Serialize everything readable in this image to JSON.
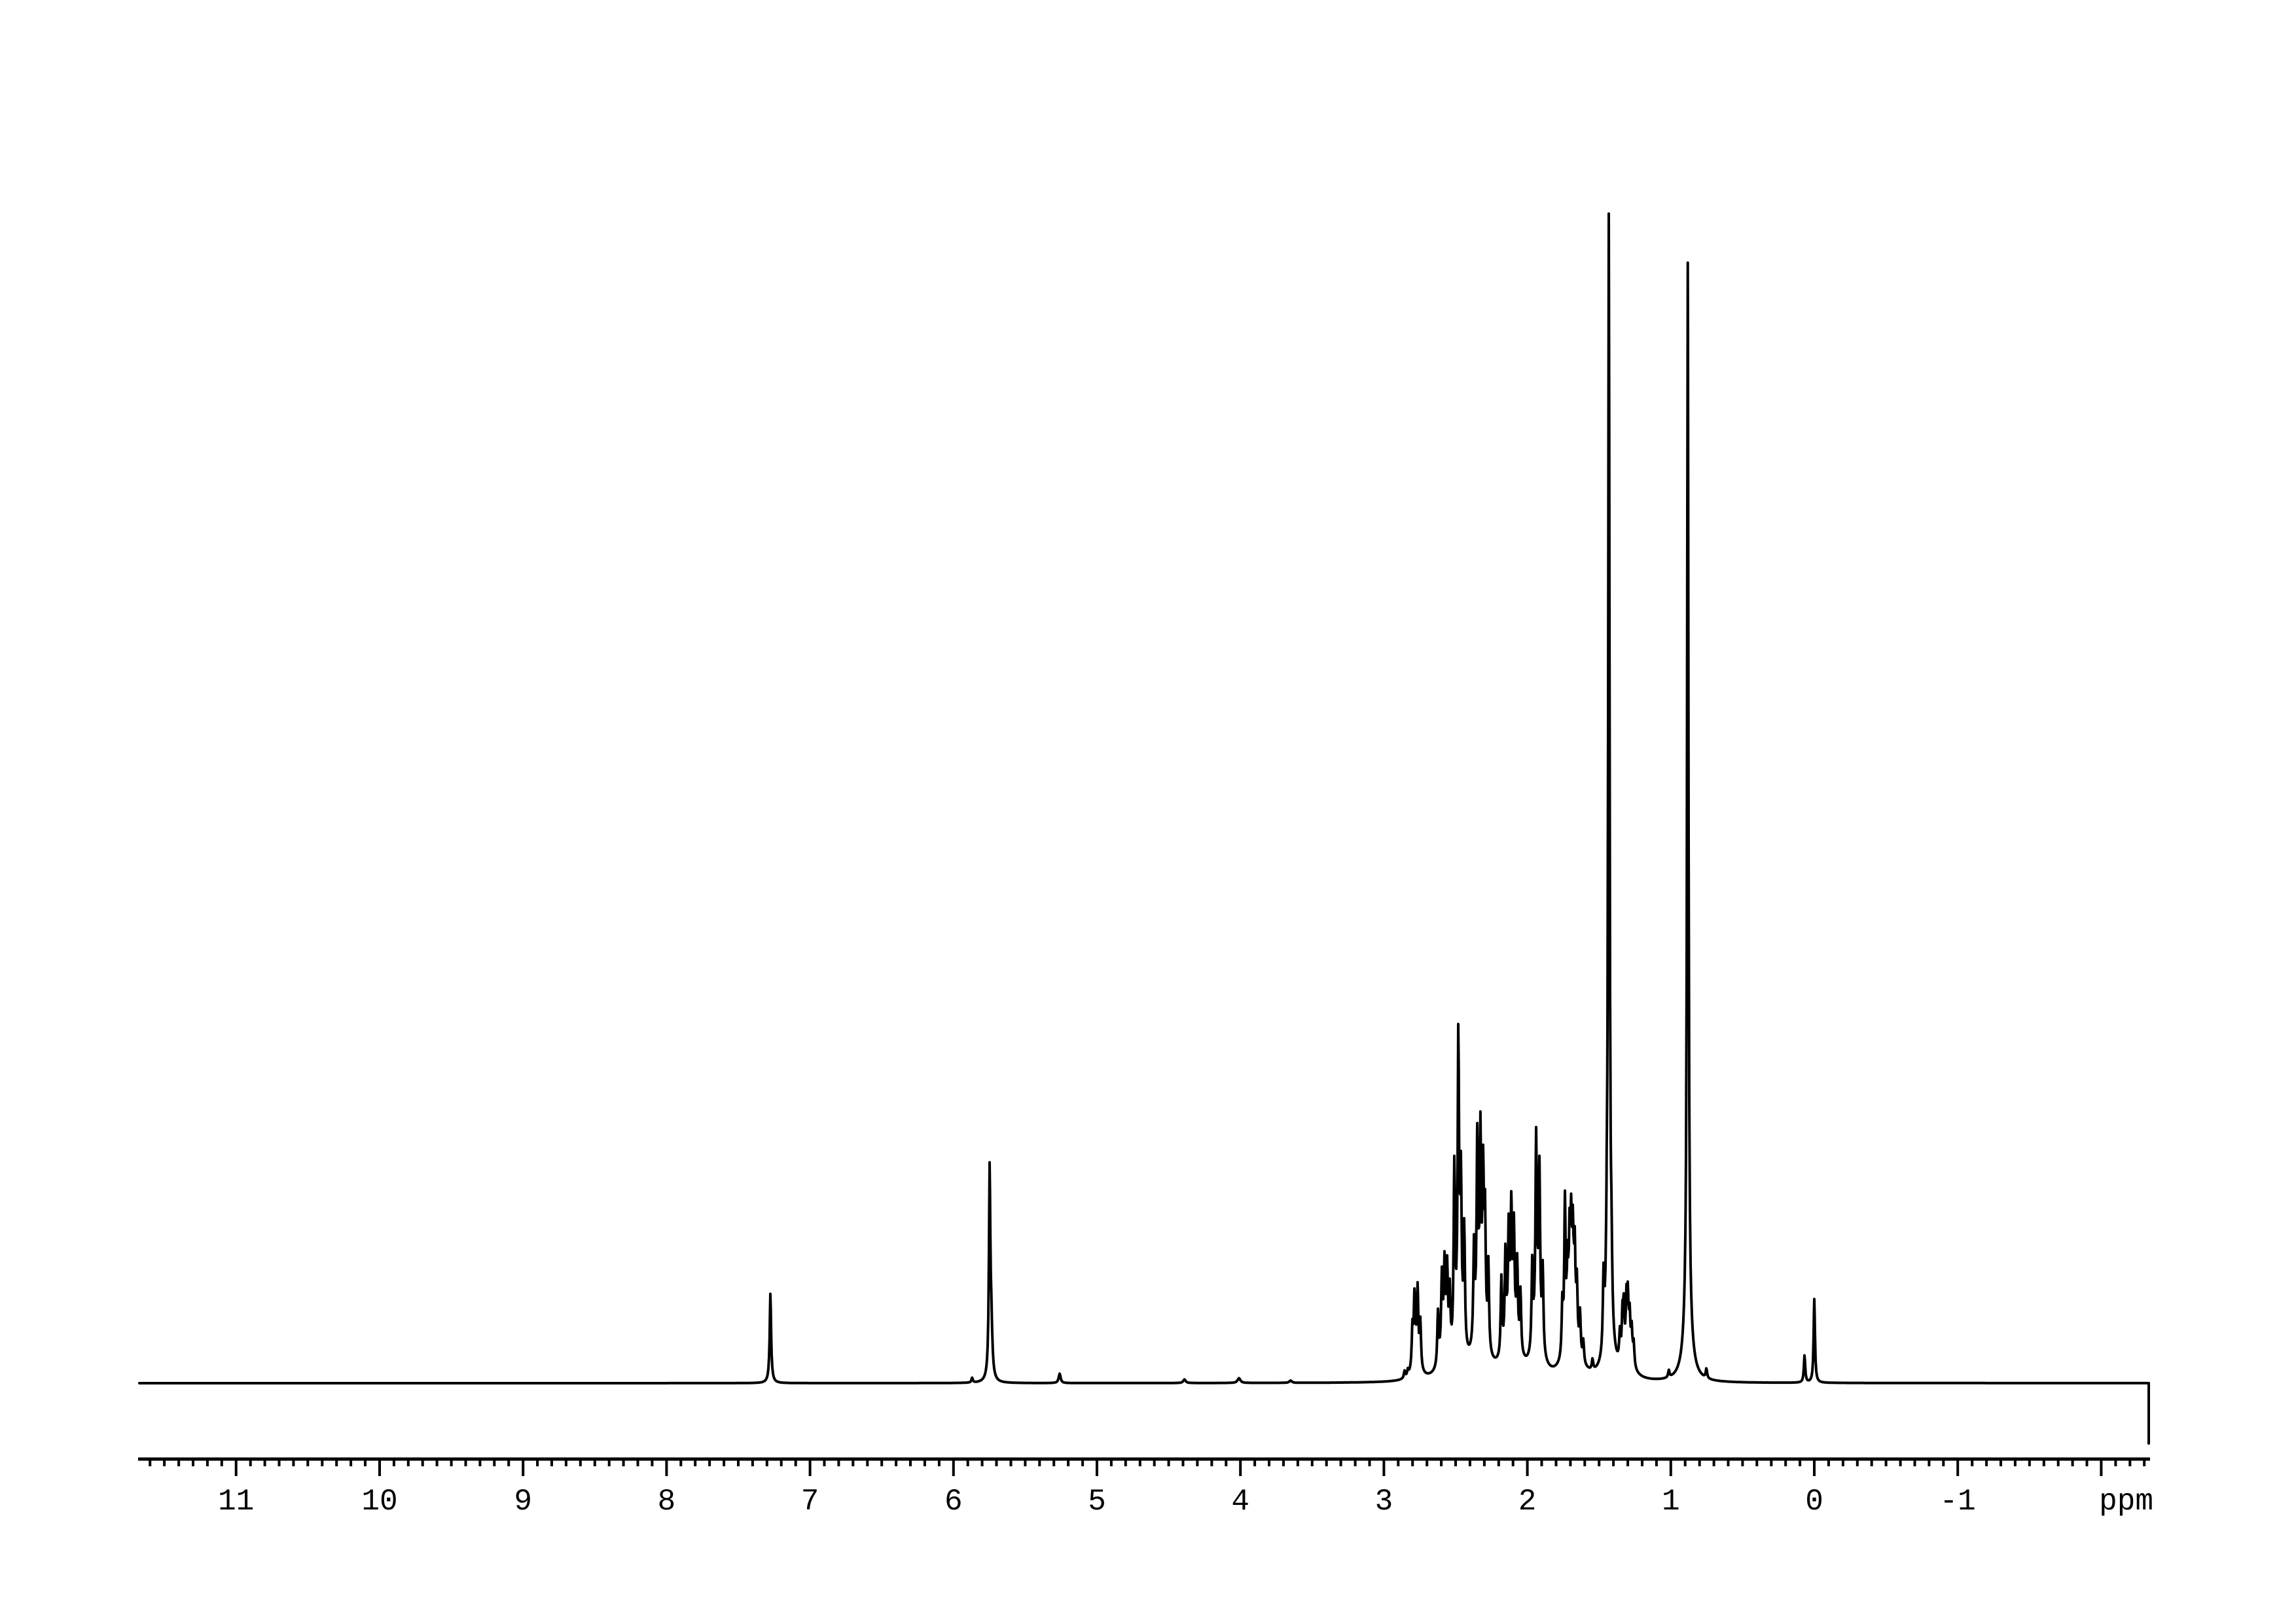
{
  "colors": {
    "background": "#ffffff",
    "trace": "#000000",
    "axis": "#000000"
  },
  "chart_data": {
    "type": "line",
    "description": "1H NMR spectrum, black absorption trace on white with ppm ruler axis below",
    "x_axis": {
      "label": "ppm",
      "unit_label": "ppm",
      "ppm_left": 11.674,
      "ppm_right": -2.331,
      "minor_tick_step": 0.1,
      "major_tick_ppms": [
        11,
        10,
        9,
        8,
        7,
        6,
        5,
        4,
        3,
        2,
        1,
        0,
        -1,
        -2
      ],
      "tick_labels": [
        {
          "ppm": 11,
          "label": "11"
        },
        {
          "ppm": 10,
          "label": "10"
        },
        {
          "ppm": 9,
          "label": "9"
        },
        {
          "ppm": 8,
          "label": "8"
        },
        {
          "ppm": 7,
          "label": "7"
        },
        {
          "ppm": 6,
          "label": "6"
        },
        {
          "ppm": 5,
          "label": "5"
        },
        {
          "ppm": 4,
          "label": "4"
        },
        {
          "ppm": 3,
          "label": "3"
        },
        {
          "ppm": 2,
          "label": "2"
        },
        {
          "ppm": 1,
          "label": "1"
        },
        {
          "ppm": 0,
          "label": "0"
        },
        {
          "ppm": -1,
          "label": "-1"
        }
      ]
    },
    "y_axis": {
      "shown": false,
      "max_peak_relative": 1.0
    },
    "grid": false,
    "legend": false,
    "default_linewidth_ppm": 0.0055,
    "peaks": [
      {
        "ppm": 7.276,
        "h": 0.068
      },
      {
        "ppm": 7.276,
        "h": 0.008,
        "w": 0.012
      },
      {
        "ppm": 5.87,
        "h": 0.004
      },
      {
        "ppm": 5.748,
        "h": 0.158
      },
      {
        "ppm": 5.745,
        "h": 0.02,
        "w": 0.012
      },
      {
        "ppm": 5.736,
        "h": 0.035,
        "w": 0.008
      },
      {
        "ppm": 5.26,
        "h": 0.008,
        "w": 0.008
      },
      {
        "ppm": 4.39,
        "h": 0.003,
        "w": 0.01
      },
      {
        "ppm": 4.01,
        "h": 0.004,
        "w": 0.012
      },
      {
        "ppm": 3.65,
        "h": 0.002,
        "w": 0.01
      },
      {
        "ppm": 2.856,
        "h": 0.006
      },
      {
        "ppm": 2.833,
        "h": 0.005
      },
      {
        "ppm": 2.801,
        "h": 0.033
      },
      {
        "ppm": 2.787,
        "h": 0.052
      },
      {
        "ppm": 2.765,
        "h": 0.057
      },
      {
        "ppm": 2.746,
        "h": 0.038
      },
      {
        "ppm": 2.775,
        "h": 0.022,
        "w": 0.025
      },
      {
        "ppm": 2.623,
        "h": 0.044
      },
      {
        "ppm": 2.596,
        "h": 0.06
      },
      {
        "ppm": 2.577,
        "h": 0.062
      },
      {
        "ppm": 2.559,
        "h": 0.065
      },
      {
        "ppm": 2.541,
        "h": 0.051
      },
      {
        "ppm": 2.58,
        "h": 0.03,
        "w": 0.03
      },
      {
        "ppm": 2.509,
        "h": 0.15
      },
      {
        "ppm": 2.481,
        "h": 0.24
      },
      {
        "ppm": 2.463,
        "h": 0.12
      },
      {
        "ppm": 2.44,
        "h": 0.098
      },
      {
        "ppm": 2.475,
        "h": 0.045,
        "w": 0.03
      },
      {
        "ppm": 2.372,
        "h": 0.08
      },
      {
        "ppm": 2.349,
        "h": 0.152
      },
      {
        "ppm": 2.327,
        "h": 0.146
      },
      {
        "ppm": 2.308,
        "h": 0.123
      },
      {
        "ppm": 2.295,
        "h": 0.098
      },
      {
        "ppm": 2.272,
        "h": 0.072
      },
      {
        "ppm": 2.33,
        "h": 0.055,
        "w": 0.04
      },
      {
        "ppm": 2.181,
        "h": 0.065
      },
      {
        "ppm": 2.153,
        "h": 0.077
      },
      {
        "ppm": 2.13,
        "h": 0.085
      },
      {
        "ppm": 2.112,
        "h": 0.095
      },
      {
        "ppm": 2.094,
        "h": 0.083
      },
      {
        "ppm": 2.071,
        "h": 0.066
      },
      {
        "ppm": 2.048,
        "h": 0.051
      },
      {
        "ppm": 2.11,
        "h": 0.045,
        "w": 0.05
      },
      {
        "ppm": 1.966,
        "h": 0.072
      },
      {
        "ppm": 1.939,
        "h": 0.153
      },
      {
        "ppm": 1.916,
        "h": 0.132
      },
      {
        "ppm": 1.893,
        "h": 0.068
      },
      {
        "ppm": 1.93,
        "h": 0.05,
        "w": 0.03
      },
      {
        "ppm": 1.756,
        "h": 0.045
      },
      {
        "ppm": 1.738,
        "h": 0.125
      },
      {
        "ppm": 1.72,
        "h": 0.06
      },
      {
        "ppm": 1.706,
        "h": 0.075
      },
      {
        "ppm": 1.695,
        "h": 0.08
      },
      {
        "ppm": 1.683,
        "h": 0.075
      },
      {
        "ppm": 1.67,
        "h": 0.07
      },
      {
        "ppm": 1.655,
        "h": 0.05
      },
      {
        "ppm": 1.633,
        "h": 0.035
      },
      {
        "ppm": 1.61,
        "h": 0.018
      },
      {
        "ppm": 1.69,
        "h": 0.04,
        "w": 0.05
      },
      {
        "ppm": 1.546,
        "h": 0.009
      },
      {
        "ppm": 1.469,
        "h": 0.06
      },
      {
        "ppm": 1.446,
        "h": 0.05
      },
      {
        "ppm": 1.432,
        "h": 0.95
      },
      {
        "ppm": 1.414,
        "h": 0.048
      },
      {
        "ppm": 1.432,
        "h": 0.035,
        "w": 0.03
      },
      {
        "ppm": 1.355,
        "h": 0.024
      },
      {
        "ppm": 1.337,
        "h": 0.036
      },
      {
        "ppm": 1.328,
        "h": 0.04
      },
      {
        "ppm": 1.309,
        "h": 0.043
      },
      {
        "ppm": 1.3,
        "h": 0.042
      },
      {
        "ppm": 1.287,
        "h": 0.033
      },
      {
        "ppm": 1.273,
        "h": 0.026
      },
      {
        "ppm": 1.259,
        "h": 0.019
      },
      {
        "ppm": 1.3,
        "h": 0.018,
        "w": 0.04
      },
      {
        "ppm": 1.014,
        "h": 0.006
      },
      {
        "ppm": 0.882,
        "h": 0.9
      },
      {
        "ppm": 0.882,
        "h": 0.05,
        "w": 0.03
      },
      {
        "ppm": 0.752,
        "h": 0.008
      },
      {
        "ppm": 0.068,
        "h": 0.023
      },
      {
        "ppm": 0.0,
        "h": 0.071
      }
    ]
  }
}
